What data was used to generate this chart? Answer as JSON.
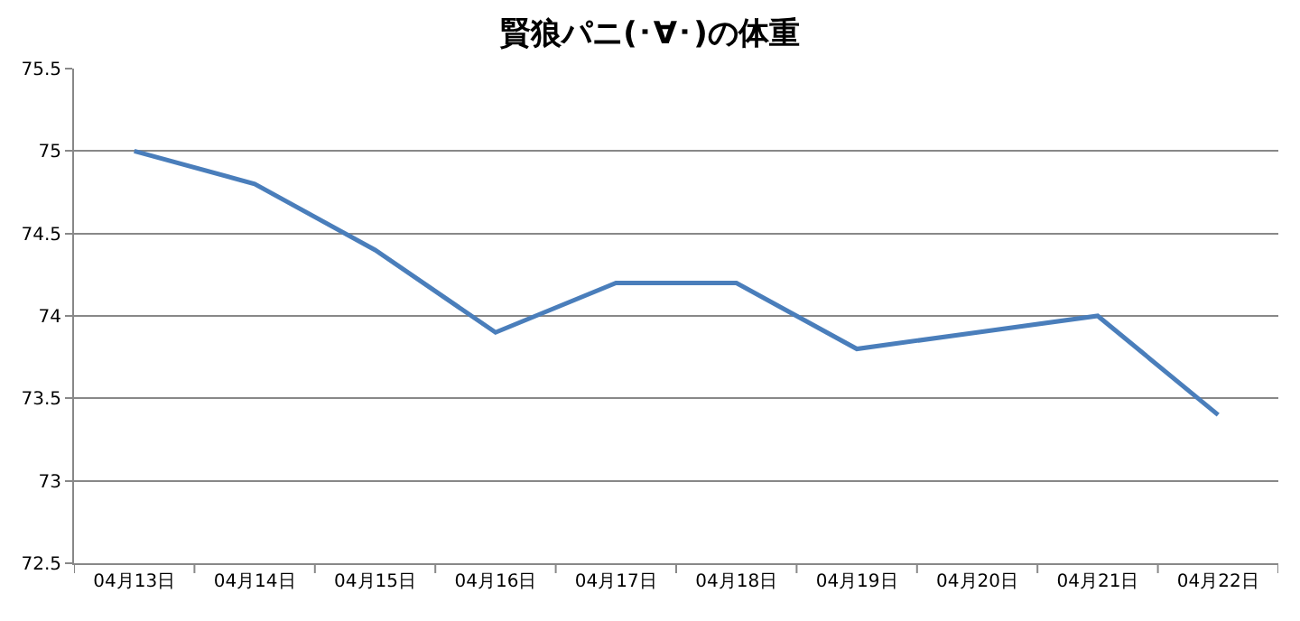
{
  "chart_data": {
    "type": "line",
    "title": "賢狼パニ(･∀･)の体重",
    "categories": [
      "04月13日",
      "04月14日",
      "04月15日",
      "04月16日",
      "04月17日",
      "04月18日",
      "04月19日",
      "04月20日",
      "04月21日",
      "04月22日"
    ],
    "series": [
      {
        "color": "#4a7ebb",
        "values": [
          75,
          74.8,
          74.4,
          73.9,
          74.2,
          74.2,
          73.8,
          73.9,
          74.0,
          73.4
        ]
      }
    ],
    "ylim": [
      72.5,
      75.5
    ],
    "yticks": [
      72.5,
      73,
      73.5,
      74,
      74.5,
      75,
      75.5
    ],
    "grid": "y",
    "legend": false,
    "marker": "none",
    "line_style": "solid"
  }
}
